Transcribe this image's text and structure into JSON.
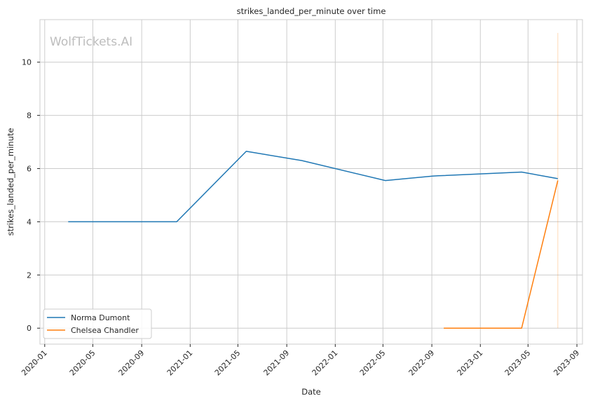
{
  "chart_data": {
    "type": "line",
    "title": "strikes_landed_per_minute over time",
    "xlabel": "Date",
    "ylabel": "strikes_landed_per_minute",
    "watermark": "WolfTickets.AI",
    "grid": true,
    "legend_position": "lower-left",
    "xlim": [
      "2019-12-20",
      "2023-09-15"
    ],
    "ylim": [
      -0.6,
      11.6
    ],
    "x_ticks": [
      "2020-01",
      "2020-05",
      "2020-09",
      "2021-01",
      "2021-05",
      "2021-09",
      "2022-01",
      "2022-05",
      "2022-09",
      "2023-01",
      "2023-05",
      "2023-09"
    ],
    "y_ticks": [
      0,
      2,
      4,
      6,
      8,
      10
    ],
    "series": [
      {
        "name": "Norma Dumont",
        "color": "#1f77b4",
        "x": [
          "2020-02-29",
          "2020-11-28",
          "2021-05-22",
          "2021-10-09",
          "2022-05-07",
          "2022-09-03",
          "2022-09-17",
          "2023-04-15",
          "2023-07-15"
        ],
        "y": [
          4.0,
          4.0,
          6.65,
          6.3,
          5.55,
          5.72,
          5.73,
          5.87,
          5.62
        ]
      },
      {
        "name": "Chelsea Chandler",
        "color": "#ff7f0e",
        "x": [
          "2022-10-01",
          "2023-04-15",
          "2023-07-15"
        ],
        "y": [
          0.0,
          0.0,
          5.55
        ]
      }
    ],
    "vertical_band": {
      "color": "#ff7f0e",
      "x": "2023-07-15",
      "y": [
        0.0,
        11.1
      ]
    }
  }
}
